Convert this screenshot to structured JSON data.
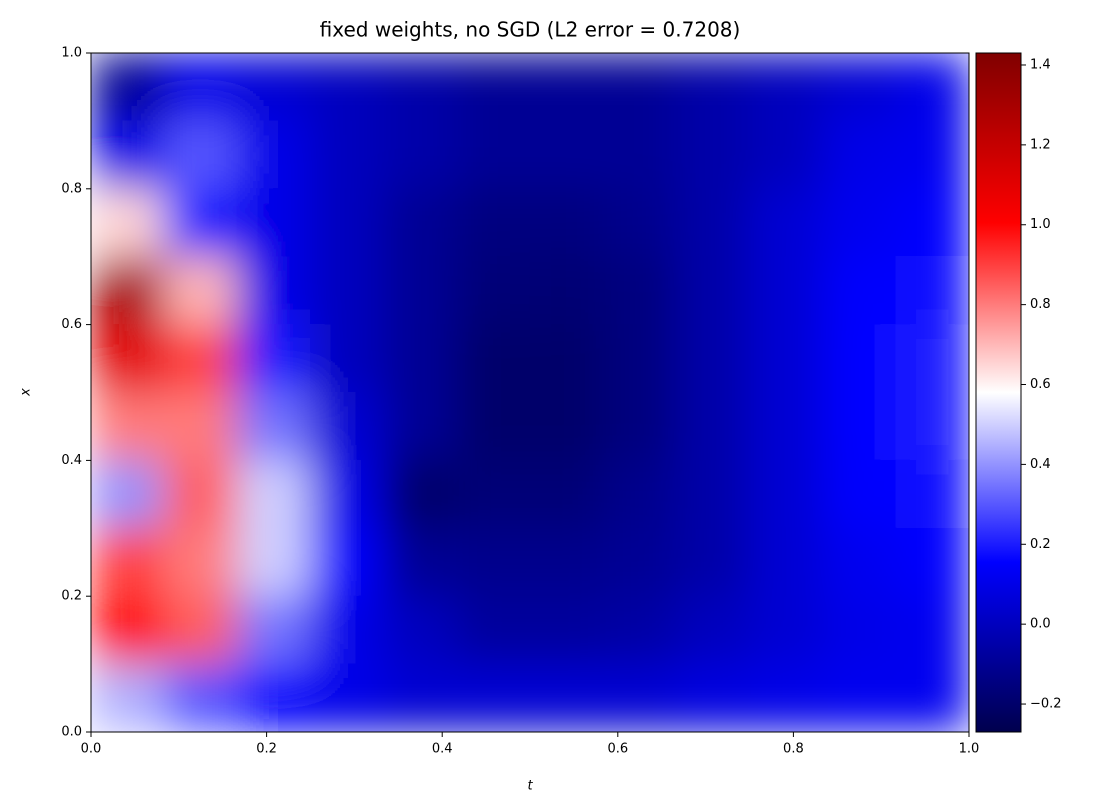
{
  "chart_data": {
    "type": "heatmap",
    "title": "fixed weights, no SGD (L2 error = 0.7208)",
    "xlabel": "t",
    "ylabel": "x",
    "colormap": "seismic",
    "xlim": [
      0,
      1
    ],
    "ylim": [
      0,
      1
    ],
    "xticks": [
      {
        "value": 0,
        "label": "0.0"
      },
      0.2,
      0.4,
      0.6,
      0.8,
      {
        "value": 1,
        "label": "1.0"
      }
    ],
    "yticks": [
      {
        "value": 0,
        "label": "0.0"
      },
      0.2,
      0.4,
      0.6,
      0.8,
      {
        "value": 1,
        "label": "1.0"
      }
    ],
    "zlim": [
      -0.27,
      1.43
    ],
    "zticks": [
      {
        "value": -0.2,
        "label": "−0.2"
      },
      {
        "value": 0,
        "label": "0.0"
      },
      0.2,
      0.4,
      0.6,
      0.8,
      {
        "value": 1,
        "label": "1.0"
      },
      1.2,
      1.4
    ],
    "x": [
      0.0417,
      0.125,
      0.2083,
      0.2917,
      0.375,
      0.4583,
      0.5417,
      0.625,
      0.7083,
      0.7917,
      0.875,
      0.9583
    ],
    "y": [
      0.95,
      0.85,
      0.75,
      0.65,
      0.55,
      0.45,
      0.35,
      0.25,
      0.15,
      0.05
    ],
    "z": [
      [
        -0.1,
        0.1,
        0.05,
        0.0,
        -0.05,
        -0.1,
        -0.1,
        -0.1,
        -0.05,
        0.0,
        0.05,
        0.1
      ],
      [
        0.1,
        0.3,
        0.1,
        0.0,
        -0.05,
        -0.1,
        -0.1,
        -0.1,
        -0.05,
        0.0,
        0.1,
        0.12
      ],
      [
        0.65,
        0.2,
        0.1,
        0.0,
        -0.1,
        -0.15,
        -0.15,
        -0.12,
        -0.05,
        0.05,
        0.12,
        0.15
      ],
      [
        1.3,
        0.7,
        0.1,
        0.0,
        -0.1,
        -0.17,
        -0.18,
        -0.15,
        -0.05,
        0.05,
        0.15,
        0.18
      ],
      [
        1.1,
        0.9,
        0.2,
        0.0,
        -0.1,
        -0.2,
        -0.2,
        -0.15,
        -0.05,
        0.05,
        0.16,
        0.2
      ],
      [
        0.8,
        0.8,
        0.35,
        0.05,
        -0.1,
        -0.2,
        -0.2,
        -0.15,
        -0.05,
        0.05,
        0.16,
        0.2
      ],
      [
        0.4,
        0.85,
        0.5,
        0.1,
        -0.2,
        -0.17,
        -0.17,
        -0.12,
        -0.05,
        0.05,
        0.15,
        0.18
      ],
      [
        0.9,
        0.8,
        0.5,
        0.15,
        -0.1,
        -0.12,
        -0.12,
        -0.1,
        -0.05,
        0.05,
        0.12,
        0.15
      ],
      [
        1.0,
        0.85,
        0.35,
        0.1,
        0.0,
        -0.08,
        -0.08,
        -0.06,
        0.0,
        0.05,
        0.1,
        0.12
      ],
      [
        0.45,
        0.3,
        0.15,
        0.1,
        0.05,
        0.05,
        0.05,
        0.05,
        0.08,
        0.1,
        0.12,
        0.12
      ]
    ]
  }
}
